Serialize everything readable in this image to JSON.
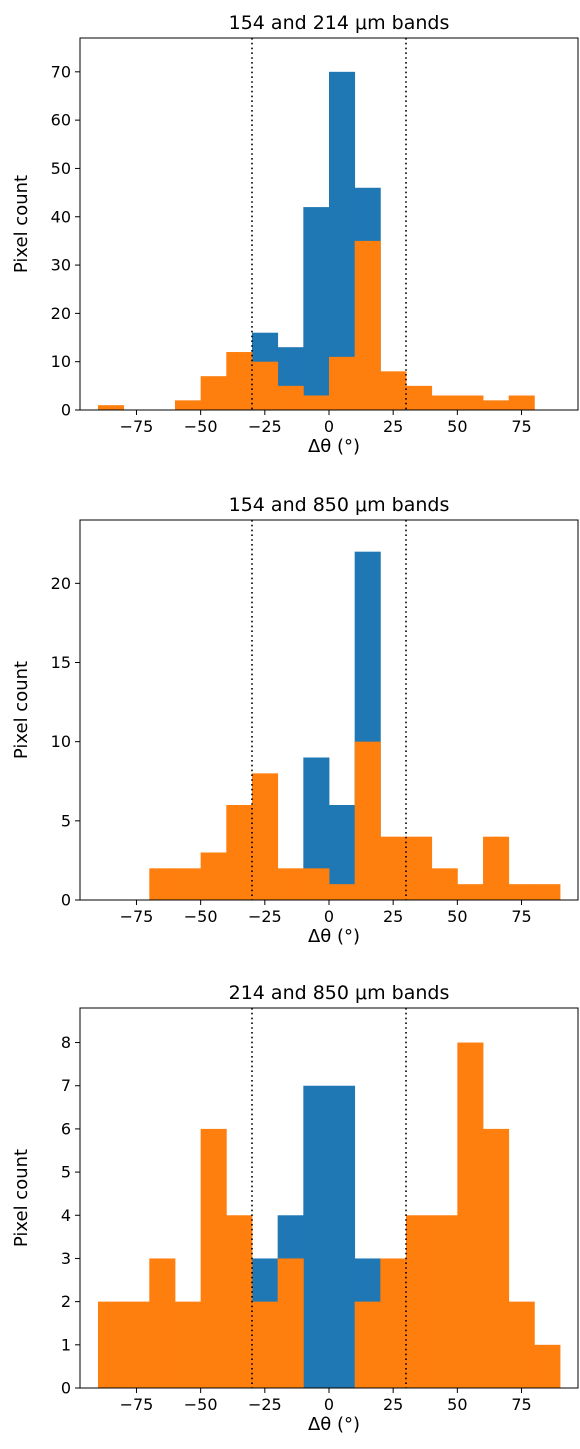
{
  "chart_data": [
    {
      "type": "bar",
      "title": "154 and 214 μm bands",
      "xlabel": "Δθ (°)",
      "ylabel": "Pixel count",
      "xlim": [
        -97,
        97
      ],
      "ylim": [
        0,
        77
      ],
      "xticks": [
        -75,
        -50,
        -25,
        0,
        25,
        50,
        75
      ],
      "xtick_labels": [
        "−75",
        "−50",
        "−25",
        "0",
        "25",
        "50",
        "75"
      ],
      "yticks": [
        0,
        10,
        20,
        30,
        40,
        50,
        60,
        70
      ],
      "ytick_labels": [
        "0",
        "10",
        "20",
        "30",
        "40",
        "50",
        "60",
        "70"
      ],
      "vlines": [
        -30,
        30
      ],
      "bin_edges": [
        -90,
        -80,
        -70,
        -60,
        -50,
        -40,
        -30,
        -20,
        -10,
        0,
        10,
        20,
        30,
        40,
        50,
        60,
        70,
        80,
        90
      ],
      "series": [
        {
          "color": "#1f77b4",
          "values": [
            0,
            0,
            0,
            0,
            0,
            0,
            16,
            13,
            42,
            70,
            46,
            0,
            0,
            0,
            0,
            0,
            0,
            0
          ]
        },
        {
          "color": "#ff7f0e",
          "values": [
            1,
            0,
            0,
            2,
            7,
            12,
            10,
            5,
            3,
            11,
            35,
            8,
            5,
            3,
            3,
            2,
            3,
            0
          ]
        }
      ]
    },
    {
      "type": "bar",
      "title": "154 and 850 μm bands",
      "xlabel": "Δθ (°)",
      "ylabel": "Pixel count",
      "xlim": [
        -97,
        97
      ],
      "ylim": [
        0,
        24
      ],
      "xticks": [
        -75,
        -50,
        -25,
        0,
        25,
        50,
        75
      ],
      "xtick_labels": [
        "−75",
        "−50",
        "−25",
        "0",
        "25",
        "50",
        "75"
      ],
      "yticks": [
        0,
        5,
        10,
        15,
        20
      ],
      "ytick_labels": [
        "0",
        "5",
        "10",
        "15",
        "20"
      ],
      "vlines": [
        -30,
        30
      ],
      "bin_edges": [
        -90,
        -80,
        -70,
        -60,
        -50,
        -40,
        -30,
        -20,
        -10,
        0,
        10,
        20,
        30,
        40,
        50,
        60,
        70,
        80,
        90
      ],
      "series": [
        {
          "color": "#1f77b4",
          "values": [
            0,
            0,
            0,
            0,
            0,
            0,
            0,
            0,
            9,
            6,
            22,
            0,
            0,
            0,
            0,
            0,
            0,
            0
          ]
        },
        {
          "color": "#ff7f0e",
          "values": [
            0,
            0,
            2,
            2,
            3,
            6,
            8,
            2,
            2,
            1,
            10,
            4,
            4,
            2,
            1,
            4,
            1,
            1
          ]
        }
      ]
    },
    {
      "type": "bar",
      "title": "214 and 850 μm bands",
      "xlabel": "Δθ (°)",
      "ylabel": "Pixel count",
      "xlim": [
        -97,
        97
      ],
      "ylim": [
        0,
        8.8
      ],
      "xticks": [
        -75,
        -50,
        -25,
        0,
        25,
        50,
        75
      ],
      "xtick_labels": [
        "−75",
        "−50",
        "−25",
        "0",
        "25",
        "50",
        "75"
      ],
      "yticks": [
        0,
        1,
        2,
        3,
        4,
        5,
        6,
        7,
        8
      ],
      "ytick_labels": [
        "0",
        "1",
        "2",
        "3",
        "4",
        "5",
        "6",
        "7",
        "8"
      ],
      "vlines": [
        -30,
        30
      ],
      "bin_edges": [
        -90,
        -80,
        -70,
        -60,
        -50,
        -40,
        -30,
        -20,
        -10,
        0,
        10,
        20,
        30,
        40,
        50,
        60,
        70,
        80,
        90
      ],
      "series": [
        {
          "color": "#1f77b4",
          "values": [
            0,
            0,
            0,
            0,
            0,
            0,
            3,
            4,
            7,
            7,
            3,
            0,
            0,
            0,
            0,
            0,
            0,
            0
          ]
        },
        {
          "color": "#ff7f0e",
          "values": [
            2,
            2,
            3,
            2,
            6,
            4,
            2,
            3,
            0,
            0,
            2,
            3,
            4,
            4,
            8,
            6,
            2,
            1
          ]
        }
      ]
    }
  ]
}
